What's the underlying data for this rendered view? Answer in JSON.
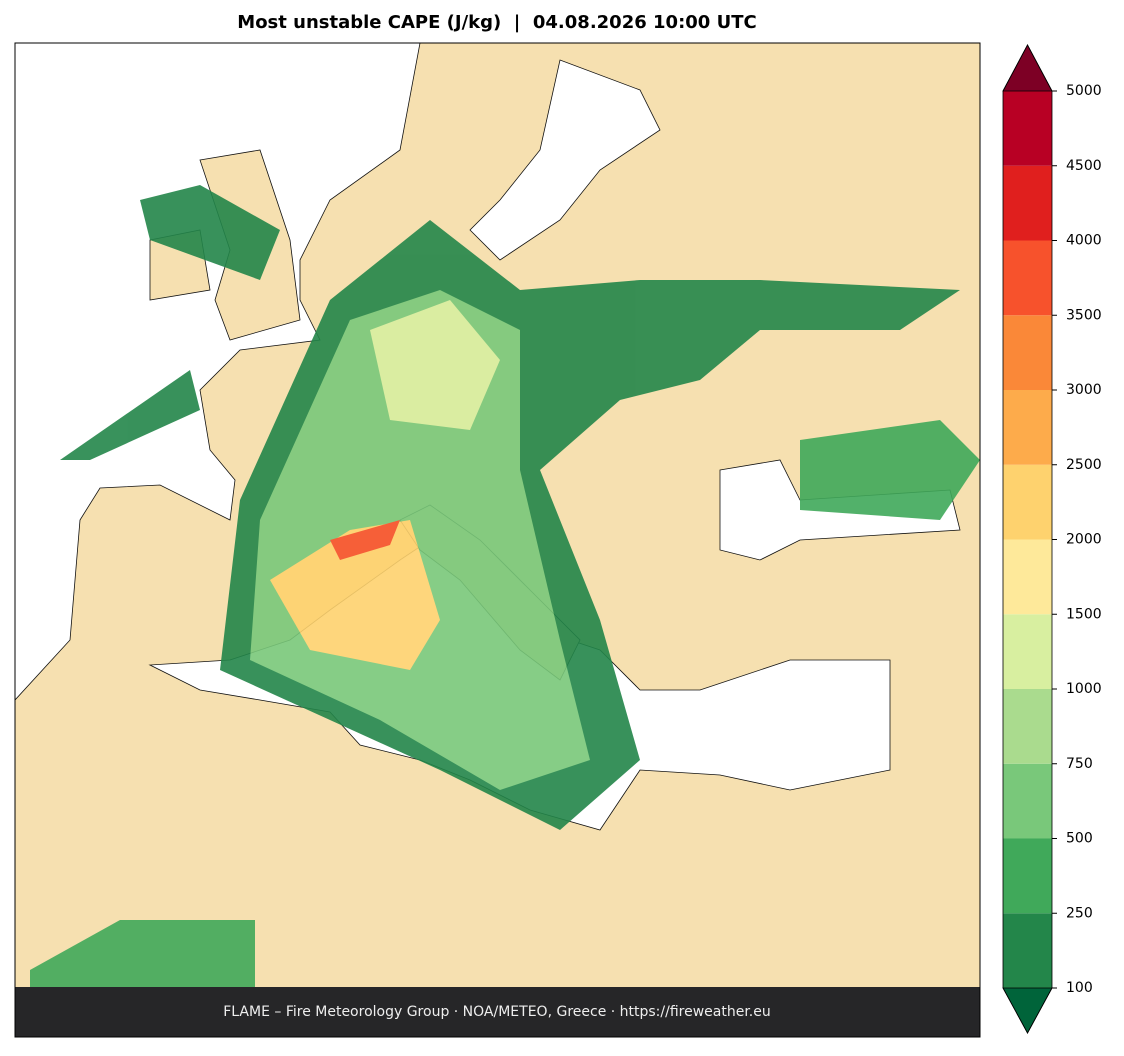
{
  "title": "Most unstable CAPE (J/kg)  |  04.08.2026 10:00 UTC",
  "footer": "FLAME – Fire Meteorology Group · NOA/METEO, Greece · https://fireweather.eu",
  "colorbar": {
    "levels": [
      100,
      250,
      500,
      750,
      1000,
      1500,
      2000,
      2500,
      3000,
      3500,
      4000,
      4500,
      5000
    ],
    "colors": [
      "#23864a",
      "#40a95a",
      "#79c87a",
      "#aadb8e",
      "#d8efa0",
      "#fee99a",
      "#fed26e",
      "#fdab4b",
      "#fa8838",
      "#f7522c",
      "#e01f1e",
      "#b80024"
    ],
    "under_color": "#00643a",
    "over_color": "#7d0025"
  }
}
